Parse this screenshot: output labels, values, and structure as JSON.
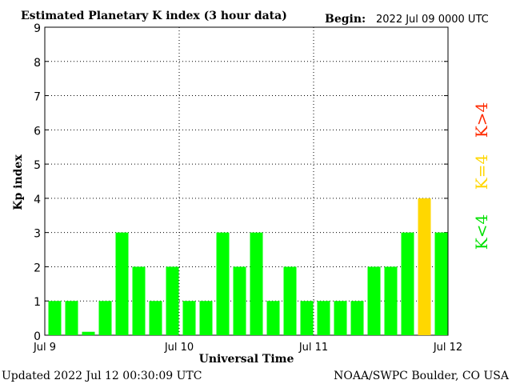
{
  "header": {
    "title": "Estimated Planetary K index (3 hour data)",
    "begin_label": "Begin:",
    "begin_value": "2022 Jul 09 0000 UTC"
  },
  "footer": {
    "updated": "Updated 2022 Jul 12 00:30:09 UTC",
    "source": "NOAA/SWPC Boulder, CO USA"
  },
  "legend": {
    "high": "K>4",
    "equal": "K=4",
    "low": "K<4"
  },
  "colors": {
    "low": "#00ff00",
    "equal": "#ffd700",
    "high": "#ff2a00"
  },
  "chart_data": {
    "type": "bar",
    "title": "Estimated Planetary K index (3 hour data)",
    "xlabel": "Universal Time",
    "ylabel": "Kp index",
    "ylim": [
      0,
      9
    ],
    "yticks": [
      "0",
      "1",
      "2",
      "3",
      "4",
      "5",
      "6",
      "7",
      "8",
      "9"
    ],
    "xticks": [
      "Jul 9",
      "Jul 10",
      "Jul 11",
      "Jul 12"
    ],
    "grid": true,
    "values": [
      1,
      1,
      0.1,
      1,
      3,
      2,
      1,
      2,
      1,
      1,
      3,
      2,
      3,
      1,
      2,
      1,
      1,
      1,
      1,
      2,
      2,
      3,
      4,
      3
    ]
  }
}
